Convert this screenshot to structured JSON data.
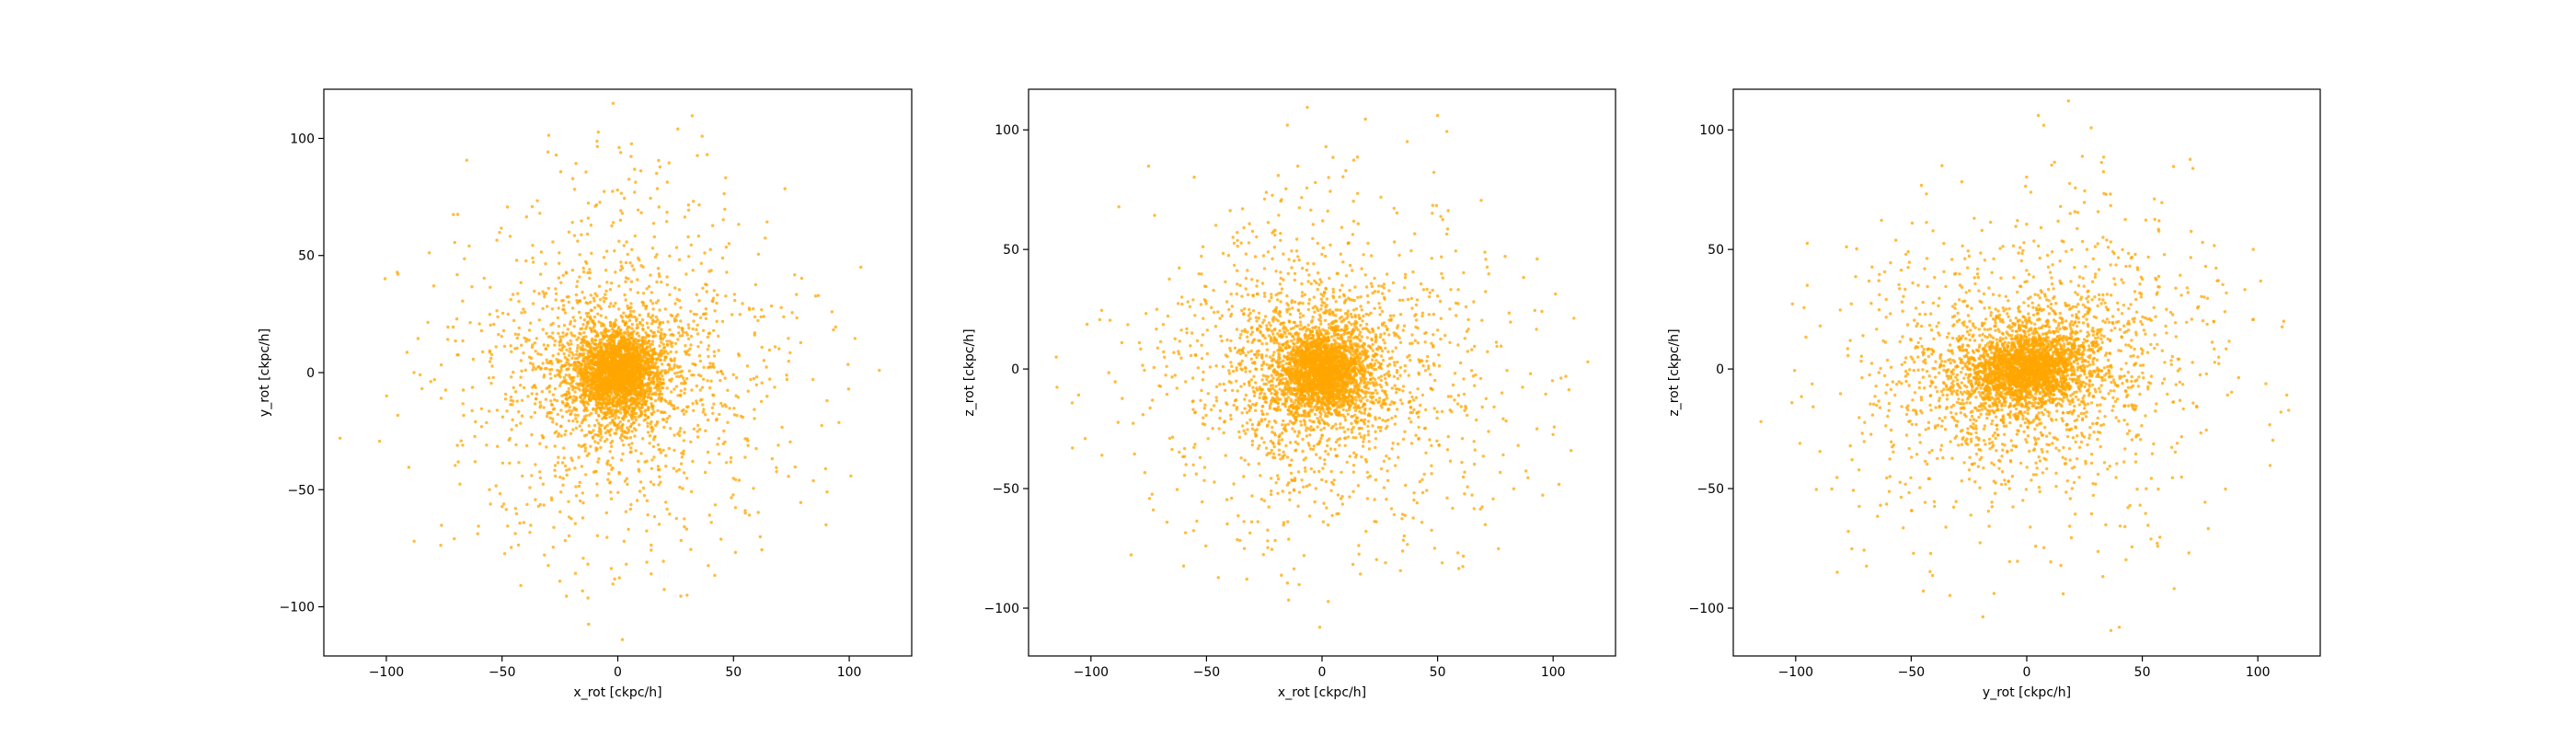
{
  "chart_data": [
    {
      "type": "scatter",
      "xlabel": "x_rot [ckpc/h]",
      "ylabel": "y_rot [ckpc/h]",
      "xlim": [
        -127,
        127
      ],
      "ylim": [
        -121,
        121
      ],
      "xticks": [
        -100,
        -50,
        0,
        50,
        100
      ],
      "yticks": [
        -100,
        -50,
        0,
        50,
        100
      ],
      "grid": false,
      "color": "#ffa500",
      "point_count_shown": 4000,
      "distribution": {
        "center": [
          0,
          0
        ],
        "core_dispersion": [
          8,
          8
        ],
        "halo_dispersion": [
          40,
          42
        ],
        "extent": [
          -115,
          115
        ],
        "tilt_deg": 0
      },
      "sample_points": [
        [
          -120,
          -28
        ],
        [
          113,
          1
        ],
        [
          -2,
          115
        ],
        [
          2,
          -114
        ],
        [
          105,
          45
        ],
        [
          -95,
          42
        ],
        [
          90,
          -65
        ],
        [
          -88,
          -72
        ],
        [
          0,
          0
        ],
        [
          -3,
          2
        ],
        [
          5,
          -4
        ]
      ]
    },
    {
      "type": "scatter",
      "xlabel": "x_rot [ckpc/h]",
      "ylabel": "z_rot [ckpc/h]",
      "xlim": [
        -127,
        127
      ],
      "ylim": [
        -120,
        117
      ],
      "xticks": [
        -100,
        -50,
        0,
        50,
        100
      ],
      "yticks": [
        -100,
        -50,
        0,
        50,
        100
      ],
      "grid": false,
      "color": "#ffa500",
      "point_count_shown": 4000,
      "distribution": {
        "center": [
          0,
          -1
        ],
        "core_dispersion": [
          9,
          8
        ],
        "halo_dispersion": [
          42,
          38
        ],
        "extent": [
          -115,
          115
        ],
        "tilt_deg": 0
      },
      "sample_points": [
        [
          -115,
          5
        ],
        [
          115,
          3
        ],
        [
          50,
          106
        ],
        [
          -15,
          102
        ],
        [
          -1,
          -108
        ],
        [
          93,
          -25
        ],
        [
          -108,
          -33
        ],
        [
          0,
          -1
        ],
        [
          -4,
          3
        ],
        [
          6,
          -5
        ]
      ]
    },
    {
      "type": "scatter",
      "xlabel": "y_rot [ckpc/h]",
      "ylabel": "z_rot [ckpc/h]",
      "xlim": [
        -127,
        127
      ],
      "ylim": [
        -120,
        117
      ],
      "xticks": [
        -100,
        -50,
        0,
        50,
        100
      ],
      "yticks": [
        -100,
        -50,
        0,
        50,
        100
      ],
      "grid": false,
      "color": "#ffa500",
      "point_count_shown": 4000,
      "distribution": {
        "center": [
          0,
          0
        ],
        "core_dispersion": [
          12,
          7
        ],
        "halo_dispersion": [
          44,
          36
        ],
        "extent": [
          -118,
          118
        ],
        "tilt_deg": 12
      },
      "sample_points": [
        [
          -115,
          -22
        ],
        [
          110,
          -18
        ],
        [
          5,
          106
        ],
        [
          40,
          -108
        ],
        [
          -82,
          -85
        ],
        [
          98,
          50
        ],
        [
          -95,
          35
        ],
        [
          0,
          0
        ],
        [
          -6,
          -2
        ],
        [
          8,
          3
        ]
      ]
    }
  ]
}
